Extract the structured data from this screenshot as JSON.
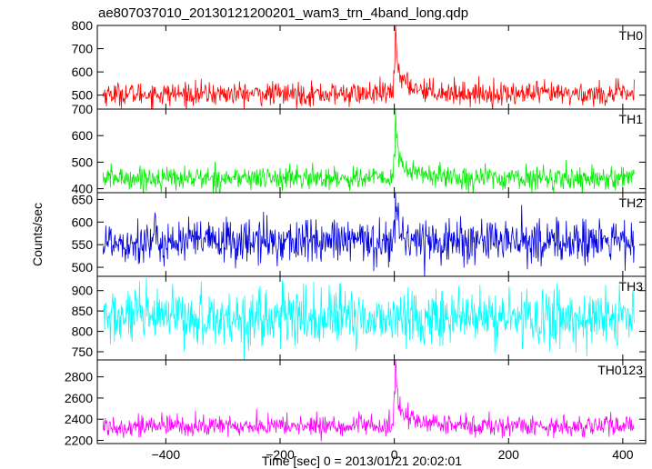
{
  "chart_data": {
    "type": "line",
    "title": "ae807037010_20130121200201_wam3_trn_4band_long.qdp",
    "xlabel": "Time [sec] 0 = 2013/01/21 20:02:01",
    "ylabel": "Counts/sec",
    "xlim": [
      -520,
      440
    ],
    "x_ticks": [
      -400,
      -200,
      0,
      200,
      400
    ],
    "x_tick_labels": [
      "−400",
      "−200",
      "0",
      "200",
      "400"
    ],
    "x_step_sec": 1,
    "x_range_data": [
      -510,
      420
    ],
    "panels": [
      {
        "name": "TH0",
        "color": "#ff0000",
        "ylim": [
          440,
          800
        ],
        "y_ticks": [
          500,
          600,
          700,
          800
        ],
        "baseline": 505,
        "noise_sd": 25,
        "peak": {
          "x": 2,
          "value": 800
        },
        "post_burst_level": 560
      },
      {
        "name": "TH1",
        "color": "#00ee00",
        "ylim": [
          385,
          700
        ],
        "y_ticks": [
          400,
          500,
          600,
          700
        ],
        "baseline": 440,
        "noise_sd": 22,
        "peak": {
          "x": 2,
          "value": 700
        },
        "post_burst_level": 480
      },
      {
        "name": "TH2",
        "color": "#0000dd",
        "ylim": [
          480,
          665
        ],
        "y_ticks": [
          500,
          550,
          600,
          650
        ],
        "baseline": 557,
        "noise_sd": 25,
        "peak": {
          "x": 2,
          "value": 665
        },
        "post_burst_level": 565
      },
      {
        "name": "TH3",
        "color": "#00ffff",
        "ylim": [
          730,
          935
        ],
        "y_ticks": [
          750,
          800,
          850,
          900
        ],
        "baseline": 833,
        "noise_sd": 35,
        "peak": null,
        "post_burst_level": 833
      },
      {
        "name": "TH0123",
        "color": "#ff00ff",
        "ylim": [
          2170,
          2960
        ],
        "y_ticks": [
          2200,
          2400,
          2600,
          2800
        ],
        "baseline": 2335,
        "noise_sd": 50,
        "peak": {
          "x": 2,
          "value": 2960
        },
        "post_burst_level": 2440
      }
    ]
  }
}
